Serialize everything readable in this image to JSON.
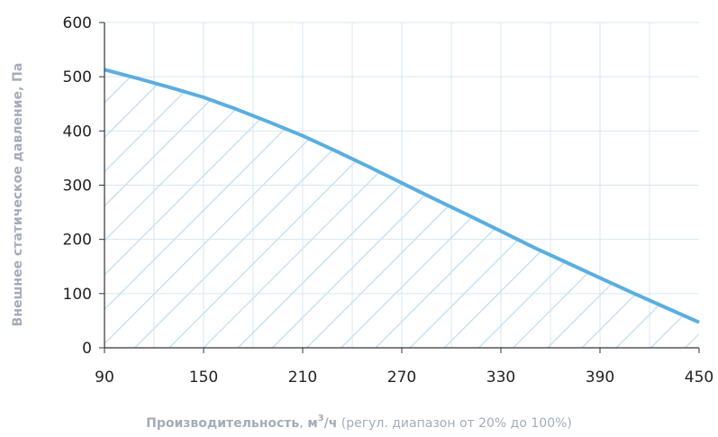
{
  "chart_data": {
    "type": "area",
    "ylabel": "Внешнее статическое давление, Па",
    "xlabel": {
      "bold_part": "Производительность",
      "sep": ", ",
      "unit_main": "м",
      "unit_sup": "3",
      "unit_tail": "/ч",
      "note": " (регул. диапазон от 20% до 100%)"
    },
    "xlim": [
      90,
      450
    ],
    "ylim": [
      0,
      600
    ],
    "x_ticks": [
      90,
      150,
      210,
      270,
      330,
      390,
      450
    ],
    "y_ticks": [
      0,
      100,
      200,
      300,
      400,
      500,
      600
    ],
    "grid": true,
    "fill_pattern": "diagonal-hatch",
    "colors": {
      "curve": "#5aaee0",
      "hatch": "#c8e3f3",
      "grid": "#d5e7f2",
      "axis": "#333333"
    },
    "series": [
      {
        "x": [
          90,
          110,
          130,
          150,
          170,
          190,
          210,
          230,
          250,
          270,
          290,
          310,
          330,
          350,
          370,
          390,
          410,
          430,
          450
        ],
        "y": [
          513,
          497,
          480,
          462,
          440,
          416,
          391,
          363,
          334,
          304,
          274,
          245,
          215,
          185,
          157,
          129,
          101,
          74,
          47
        ]
      }
    ]
  }
}
